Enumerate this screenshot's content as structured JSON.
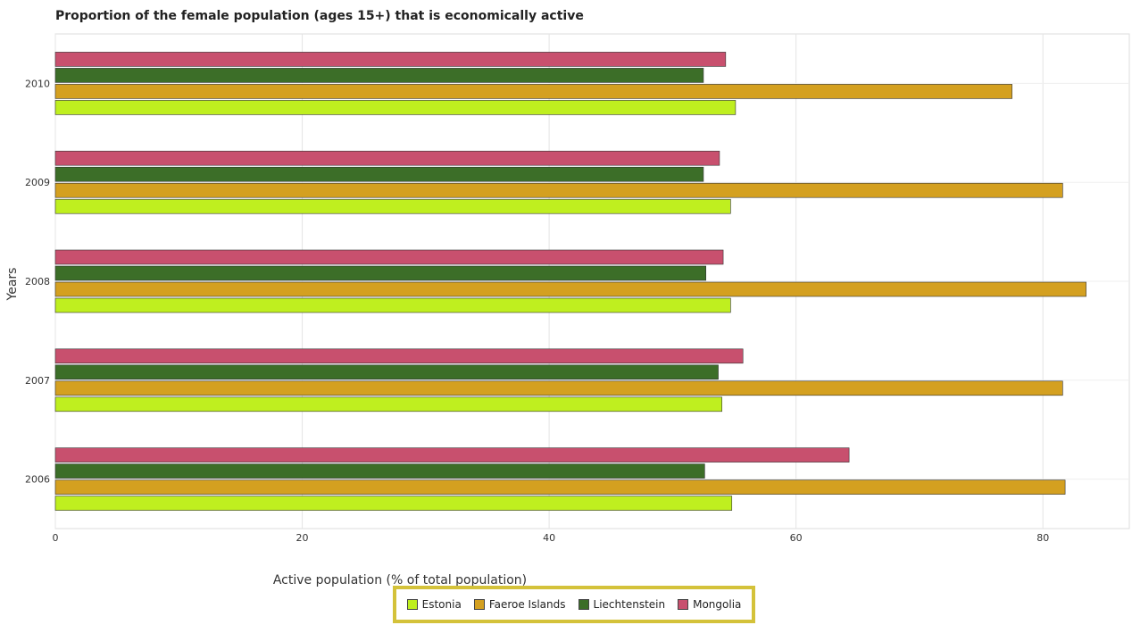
{
  "title": "Proportion of the female population (ages 15+) that is economically active",
  "chart_data": {
    "type": "bar",
    "orientation": "horizontal",
    "categories": [
      "2006",
      "2007",
      "2008",
      "2009",
      "2010"
    ],
    "xlabel": "Active population (% of total population)",
    "ylabel": "Years",
    "xlim": [
      0,
      87
    ],
    "xticks": [
      0,
      20,
      40,
      60,
      80
    ],
    "grid": true,
    "legend_position": "bottom",
    "series": [
      {
        "name": "Estonia",
        "color": "#bfef1f",
        "values": [
          54.8,
          54.0,
          54.7,
          54.7,
          55.1
        ]
      },
      {
        "name": "Faeroe Islands",
        "color": "#d4a020",
        "values": [
          81.8,
          81.6,
          83.5,
          81.6,
          77.5
        ]
      },
      {
        "name": "Liechtenstein",
        "color": "#3c6e28",
        "values": [
          52.6,
          53.7,
          52.7,
          52.5,
          52.5
        ]
      },
      {
        "name": "Mongolia",
        "color": "#c8506e",
        "values": [
          64.3,
          55.7,
          54.1,
          53.8,
          54.3
        ]
      }
    ]
  }
}
